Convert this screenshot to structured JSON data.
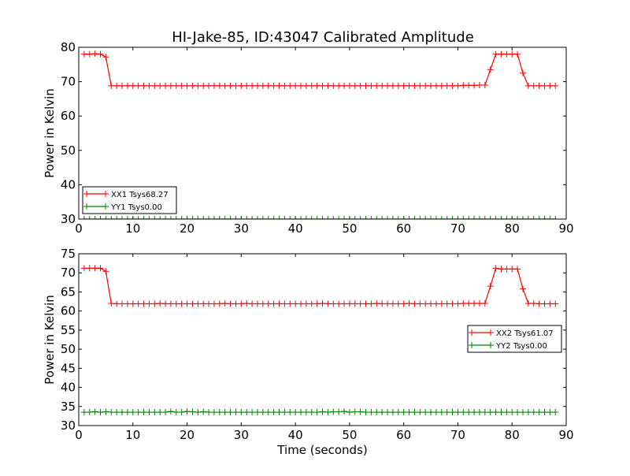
{
  "title": "HI-Jake-85, ID:43047 Calibrated Amplitude",
  "chart_data": [
    {
      "type": "line",
      "title": "HI-Jake-85, ID:43047 Calibrated Amplitude",
      "xlabel": "",
      "ylabel": "Power in Kelvin",
      "xlim": [
        0,
        90
      ],
      "ylim": [
        30,
        80
      ],
      "x_ticks": [
        "0",
        "10",
        "20",
        "30",
        "40",
        "50",
        "60",
        "70",
        "80",
        "90"
      ],
      "y_ticks": [
        "30",
        "40",
        "50",
        "60",
        "70",
        "80"
      ],
      "grid": false,
      "legend_position": "lower-left",
      "x": [
        1,
        2,
        3,
        4,
        5,
        6,
        7,
        8,
        9,
        10,
        11,
        12,
        13,
        14,
        15,
        16,
        17,
        18,
        19,
        20,
        21,
        22,
        23,
        24,
        25,
        26,
        27,
        28,
        29,
        30,
        31,
        32,
        33,
        34,
        35,
        36,
        37,
        38,
        39,
        40,
        41,
        42,
        43,
        44,
        45,
        46,
        47,
        48,
        49,
        50,
        51,
        52,
        53,
        54,
        55,
        56,
        57,
        58,
        59,
        60,
        61,
        62,
        63,
        64,
        65,
        66,
        67,
        68,
        69,
        70,
        71,
        72,
        73,
        74,
        75,
        76,
        77,
        78,
        79,
        80,
        81,
        82,
        83,
        84,
        85,
        86,
        87,
        88
      ],
      "series": [
        {
          "name": "XX1 Tsys68.27",
          "color": "#ff0000",
          "values": [
            78.0,
            78.0,
            78.1,
            78.0,
            77.2,
            68.8,
            68.8,
            68.8,
            68.8,
            68.8,
            68.8,
            68.8,
            68.8,
            68.8,
            68.8,
            68.8,
            68.8,
            68.8,
            68.8,
            68.8,
            68.8,
            68.8,
            68.8,
            68.8,
            68.8,
            68.8,
            68.8,
            68.8,
            68.8,
            68.8,
            68.8,
            68.8,
            68.8,
            68.8,
            68.8,
            68.8,
            68.8,
            68.8,
            68.8,
            68.8,
            68.8,
            68.8,
            68.8,
            68.8,
            68.8,
            68.8,
            68.8,
            68.8,
            68.8,
            68.8,
            68.8,
            68.8,
            68.8,
            68.8,
            68.8,
            68.8,
            68.8,
            68.8,
            68.8,
            68.8,
            68.8,
            68.8,
            68.8,
            68.8,
            68.8,
            68.8,
            68.8,
            68.8,
            68.8,
            68.8,
            68.9,
            68.9,
            68.9,
            69.0,
            69.0,
            73.5,
            78.0,
            78.0,
            78.0,
            78.0,
            78.0,
            72.5,
            68.8,
            68.8,
            68.8,
            68.8,
            68.8,
            68.8
          ]
        },
        {
          "name": "YY1 Tsys0.00",
          "color": "#008000",
          "values": [
            30,
            30,
            30,
            30,
            30,
            30,
            30,
            30,
            30,
            30,
            30,
            30,
            30,
            30,
            30,
            30,
            30,
            30,
            30,
            30,
            30,
            30,
            30,
            30,
            30,
            30,
            30,
            30,
            30,
            30,
            30,
            30,
            30,
            30,
            30,
            30,
            30,
            30,
            30,
            30,
            30,
            30,
            30,
            30,
            30,
            30,
            30,
            30,
            30,
            30,
            30,
            30,
            30,
            30,
            30,
            30,
            30,
            30,
            30,
            30,
            30,
            30,
            30,
            30,
            30,
            30,
            30,
            30,
            30,
            30,
            30,
            30,
            30,
            30,
            30,
            30,
            30,
            30,
            30,
            30,
            30,
            30,
            30,
            30,
            30,
            30,
            30,
            30
          ]
        }
      ]
    },
    {
      "type": "line",
      "title": "",
      "xlabel": "Time (seconds)",
      "ylabel": "Power in Kelvin",
      "xlim": [
        0,
        90
      ],
      "ylim": [
        30,
        75
      ],
      "x_ticks": [
        "0",
        "10",
        "20",
        "30",
        "40",
        "50",
        "60",
        "70",
        "80",
        "90"
      ],
      "y_ticks": [
        "30",
        "35",
        "40",
        "45",
        "50",
        "55",
        "60",
        "65",
        "70",
        "75"
      ],
      "grid": false,
      "legend_position": "center-right",
      "x": [
        1,
        2,
        3,
        4,
        5,
        6,
        7,
        8,
        9,
        10,
        11,
        12,
        13,
        14,
        15,
        16,
        17,
        18,
        19,
        20,
        21,
        22,
        23,
        24,
        25,
        26,
        27,
        28,
        29,
        30,
        31,
        32,
        33,
        34,
        35,
        36,
        37,
        38,
        39,
        40,
        41,
        42,
        43,
        44,
        45,
        46,
        47,
        48,
        49,
        50,
        51,
        52,
        53,
        54,
        55,
        56,
        57,
        58,
        59,
        60,
        61,
        62,
        63,
        64,
        65,
        66,
        67,
        68,
        69,
        70,
        71,
        72,
        73,
        74,
        75,
        76,
        77,
        78,
        79,
        80,
        81,
        82,
        83,
        84,
        85,
        86,
        87,
        88
      ],
      "series": [
        {
          "name": "XX2 Tsys61.07",
          "color": "#ff0000",
          "values": [
            71.2,
            71.2,
            71.2,
            71.2,
            70.4,
            62.0,
            61.9,
            61.9,
            61.9,
            61.9,
            61.9,
            61.9,
            61.9,
            61.9,
            62.0,
            61.9,
            61.9,
            61.9,
            61.9,
            61.9,
            61.9,
            61.9,
            61.9,
            61.9,
            61.9,
            61.9,
            62.0,
            61.9,
            61.9,
            61.9,
            62.0,
            61.9,
            61.9,
            61.9,
            61.9,
            61.9,
            61.9,
            61.9,
            61.9,
            61.9,
            61.9,
            61.9,
            61.9,
            61.9,
            62.0,
            61.9,
            61.9,
            61.9,
            61.9,
            61.9,
            61.9,
            61.9,
            61.9,
            61.9,
            62.0,
            61.9,
            61.9,
            61.9,
            61.9,
            61.9,
            62.0,
            61.9,
            61.9,
            61.9,
            61.9,
            61.9,
            61.9,
            61.9,
            61.9,
            61.9,
            62.0,
            62.0,
            62.0,
            62.0,
            62.0,
            66.5,
            71.2,
            71.0,
            71.0,
            71.0,
            71.0,
            65.8,
            62.0,
            62.0,
            61.9,
            61.9,
            61.9,
            61.9
          ]
        },
        {
          "name": "YY2 Tsys0.00",
          "color": "#008000",
          "values": [
            33.5,
            33.5,
            33.6,
            33.5,
            33.6,
            33.5,
            33.5,
            33.5,
            33.5,
            33.5,
            33.5,
            33.5,
            33.5,
            33.5,
            33.5,
            33.5,
            33.7,
            33.5,
            33.5,
            33.7,
            33.6,
            33.5,
            33.6,
            33.5,
            33.5,
            33.5,
            33.5,
            33.5,
            33.5,
            33.5,
            33.5,
            33.5,
            33.5,
            33.5,
            33.5,
            33.5,
            33.5,
            33.5,
            33.5,
            33.5,
            33.5,
            33.5,
            33.5,
            33.5,
            33.6,
            33.5,
            33.6,
            33.6,
            33.7,
            33.5,
            33.6,
            33.6,
            33.5,
            33.5,
            33.5,
            33.5,
            33.5,
            33.5,
            33.5,
            33.5,
            33.5,
            33.5,
            33.5,
            33.5,
            33.5,
            33.5,
            33.5,
            33.5,
            33.5,
            33.5,
            33.5,
            33.5,
            33.5,
            33.5,
            33.5,
            33.5,
            33.5,
            33.5,
            33.5,
            33.5,
            33.5,
            33.5,
            33.5,
            33.5,
            33.5,
            33.5,
            33.5,
            33.5
          ]
        }
      ]
    }
  ]
}
